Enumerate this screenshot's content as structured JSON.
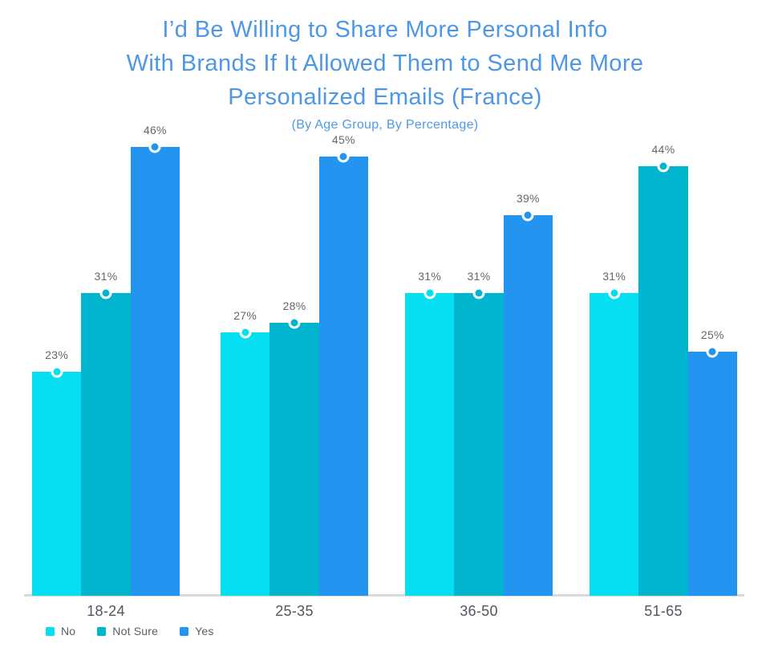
{
  "header": {
    "title_lines": [
      "I’d Be Willing to Share More Personal Info",
      "With Brands If It Allowed Them to Send Me More",
      "Personalized Emails (France)"
    ],
    "subtitle": "(By Age Group, By Percentage)",
    "title_color": "#4e97e6"
  },
  "chart_data": {
    "type": "bar",
    "title": "I’d Be Willing to Share More Personal Info With Brands If It Allowed Them to Send Me More Personalized Emails (France)",
    "subtitle": "(By Age Group, By Percentage)",
    "categories": [
      "18-24",
      "25-35",
      "36-50",
      "51-65"
    ],
    "series": [
      {
        "name": "No",
        "color": "#06dff2",
        "values": [
          23,
          27,
          31,
          31
        ]
      },
      {
        "name": "Not Sure",
        "color": "#00b5cd",
        "values": [
          31,
          28,
          31,
          44
        ]
      },
      {
        "name": "Yes",
        "color": "#2394ef",
        "values": [
          46,
          45,
          39,
          25
        ]
      }
    ],
    "value_suffix": "%",
    "xlabel": "",
    "ylabel": "",
    "ylim": [
      0,
      50
    ],
    "grid": false,
    "axis_line_color": "#d9d9d9",
    "legend_position": "bottom-left"
  }
}
